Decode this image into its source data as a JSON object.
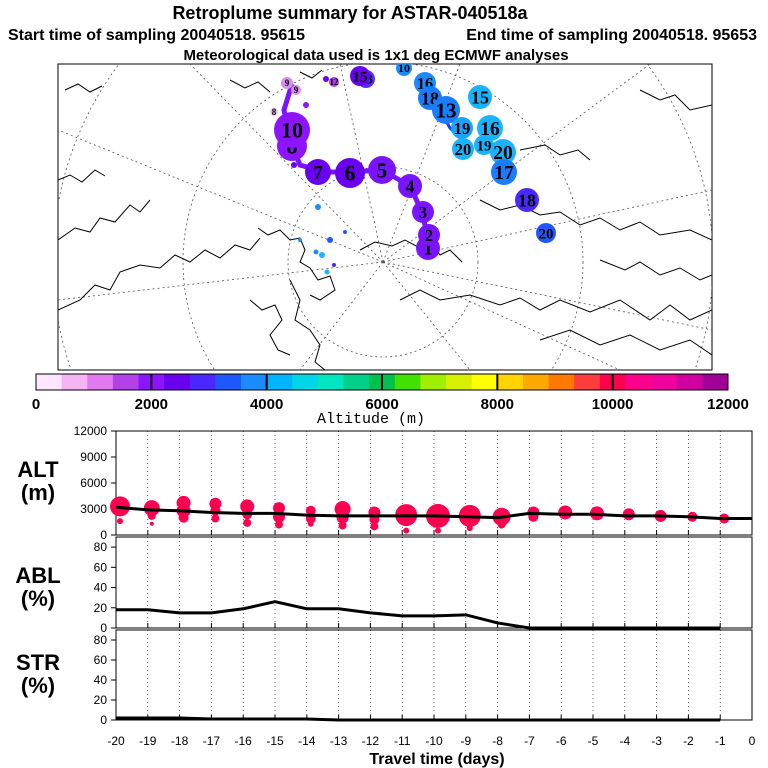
{
  "header": {
    "title": "Retroplume summary for ASTAR-040518a",
    "start_time": "Start time of sampling 20040518. 95615",
    "end_time": "End time of sampling 20040518. 95653",
    "met_note": "Meteorological data used is 1x1 deg ECMWF analyses"
  },
  "colorbar": {
    "label": "Altitude (m)",
    "ticks": [
      "0",
      "2000",
      "4000",
      "6000",
      "8000",
      "10000",
      "12000"
    ],
    "colors": [
      "#ffe6ff",
      "#f5b5f5",
      "#e07aee",
      "#b340e8",
      "#8c14ff",
      "#6a00f0",
      "#4a28ff",
      "#2058ff",
      "#1a8cff",
      "#00b4ff",
      "#00d6e6",
      "#00e6c0",
      "#00d08a",
      "#00c050",
      "#40e000",
      "#a0ee00",
      "#d6f000",
      "#ffff00",
      "#ffd200",
      "#ffa800",
      "#ff7800",
      "#ff3c3c",
      "#ff0050",
      "#ff008c",
      "#f0009c",
      "#d000a0",
      "#a00096"
    ]
  },
  "map": {
    "trajectory_labels": [
      {
        "text": "1",
        "color": "#7a14ff"
      },
      {
        "text": "2",
        "color": "#7a14ff"
      },
      {
        "text": "3",
        "color": "#7a14ff"
      },
      {
        "text": "4",
        "color": "#7a14ff"
      },
      {
        "text": "5",
        "color": "#7a14ff"
      },
      {
        "text": "6",
        "color": "#6a00f0"
      },
      {
        "text": "7",
        "color": "#6a00f0"
      },
      {
        "text": "8",
        "color": "#8c14ff"
      },
      {
        "text": "9",
        "color": "#d890f0"
      },
      {
        "text": "9",
        "color": "#d890f0"
      },
      {
        "text": "8",
        "color": "#f0c0f8"
      },
      {
        "text": "10",
        "color": "#8c14ff"
      },
      {
        "text": "12",
        "color": "#b340e8"
      },
      {
        "text": "13",
        "color": "#5a2cff"
      },
      {
        "text": "15",
        "color": "#6a00f0"
      },
      {
        "text": "10",
        "color": "#1a8cff"
      },
      {
        "text": "16",
        "color": "#1a8cff"
      },
      {
        "text": "18",
        "color": "#1a7cff"
      },
      {
        "text": "13",
        "color": "#1a7cff"
      },
      {
        "text": "15",
        "color": "#19b4ff"
      },
      {
        "text": "19",
        "color": "#19a4ff"
      },
      {
        "text": "16",
        "color": "#19b4ff"
      },
      {
        "text": "20",
        "color": "#19b4ff"
      },
      {
        "text": "19",
        "color": "#19b4ff"
      },
      {
        "text": "20",
        "color": "#19b4ff"
      },
      {
        "text": "17",
        "color": "#1a7cff"
      },
      {
        "text": "18",
        "color": "#4a28ff"
      },
      {
        "text": "20",
        "color": "#2058ff"
      }
    ]
  },
  "chart_data": [
    {
      "type": "line",
      "title": "ALT",
      "ylabel": "(m)",
      "xlabel": "Travel time (days)",
      "xlim": [
        -20,
        0
      ],
      "ylim": [
        0,
        12000
      ],
      "yticks": [
        "12000",
        "9000",
        "6000",
        "3000",
        "0"
      ],
      "x": [
        -20,
        -19,
        -18,
        -17,
        -16,
        -15,
        -14,
        -13,
        -12,
        -11,
        -10,
        -9,
        -8,
        -7,
        -6,
        -5,
        -4,
        -3,
        -2,
        -1,
        0
      ],
      "series": [
        {
          "name": "mean altitude",
          "values": [
            3200,
            2900,
            2800,
            2600,
            2500,
            2500,
            2300,
            2200,
            2200,
            2200,
            2200,
            2100,
            2000,
            2500,
            2400,
            2400,
            2200,
            2200,
            2100,
            1900,
            1900
          ]
        }
      ],
      "points_color": "#ff0050",
      "points": [
        {
          "x": -20,
          "y": 3300,
          "s": 10
        },
        {
          "x": -20,
          "y": 1600,
          "s": 3
        },
        {
          "x": -19,
          "y": 3100,
          "s": 8
        },
        {
          "x": -19,
          "y": 2200,
          "s": 4
        },
        {
          "x": -19,
          "y": 1300,
          "s": 2
        },
        {
          "x": -18,
          "y": 3700,
          "s": 7
        },
        {
          "x": -18,
          "y": 2800,
          "s": 7
        },
        {
          "x": -18,
          "y": 2000,
          "s": 5
        },
        {
          "x": -17,
          "y": 3600,
          "s": 6
        },
        {
          "x": -17,
          "y": 2800,
          "s": 5
        },
        {
          "x": -17,
          "y": 1900,
          "s": 4
        },
        {
          "x": -16,
          "y": 3300,
          "s": 7
        },
        {
          "x": -16,
          "y": 2400,
          "s": 5
        },
        {
          "x": -16,
          "y": 1400,
          "s": 4
        },
        {
          "x": -15,
          "y": 3100,
          "s": 6
        },
        {
          "x": -15,
          "y": 2100,
          "s": 6
        },
        {
          "x": -15,
          "y": 1200,
          "s": 4
        },
        {
          "x": -14,
          "y": 2800,
          "s": 5
        },
        {
          "x": -14,
          "y": 1900,
          "s": 5
        },
        {
          "x": -14,
          "y": 1300,
          "s": 3
        },
        {
          "x": -13,
          "y": 3000,
          "s": 8
        },
        {
          "x": -13,
          "y": 2000,
          "s": 6
        },
        {
          "x": -13,
          "y": 1100,
          "s": 4
        },
        {
          "x": -12,
          "y": 2600,
          "s": 6
        },
        {
          "x": -12,
          "y": 1800,
          "s": 5
        },
        {
          "x": -12,
          "y": 1000,
          "s": 4
        },
        {
          "x": -11,
          "y": 2300,
          "s": 11
        },
        {
          "x": -11,
          "y": 500,
          "s": 3
        },
        {
          "x": -10,
          "y": 2200,
          "s": 12
        },
        {
          "x": -10,
          "y": 500,
          "s": 3
        },
        {
          "x": -9,
          "y": 2200,
          "s": 11
        },
        {
          "x": -9,
          "y": 800,
          "s": 3
        },
        {
          "x": -8,
          "y": 2100,
          "s": 9
        },
        {
          "x": -8,
          "y": 1200,
          "s": 4
        },
        {
          "x": -7,
          "y": 2600,
          "s": 6
        },
        {
          "x": -7,
          "y": 2100,
          "s": 5
        },
        {
          "x": -6,
          "y": 2600,
          "s": 7
        },
        {
          "x": -5,
          "y": 2500,
          "s": 7
        },
        {
          "x": -4,
          "y": 2400,
          "s": 6
        },
        {
          "x": -3,
          "y": 2200,
          "s": 6
        },
        {
          "x": -2,
          "y": 2100,
          "s": 5
        },
        {
          "x": -1,
          "y": 1900,
          "s": 5
        }
      ]
    },
    {
      "type": "line",
      "title": "ABL",
      "ylabel": "(%)",
      "xlim": [
        -20,
        0
      ],
      "ylim": [
        0,
        90
      ],
      "yticks": [
        "80",
        "60",
        "40",
        "20",
        "0"
      ],
      "x": [
        -20,
        -19,
        -18,
        -17,
        -16,
        -15,
        -14,
        -13,
        -12,
        -11,
        -10,
        -9,
        -8,
        -7,
        -6,
        -5,
        -4,
        -3,
        -2,
        -1
      ],
      "series": [
        {
          "name": "ABL fraction",
          "values": [
            18,
            18,
            15,
            15,
            19,
            26,
            19,
            19,
            15,
            12,
            12,
            13,
            5,
            0,
            0,
            0,
            0,
            0,
            0,
            0
          ]
        }
      ]
    },
    {
      "type": "line",
      "title": "STR",
      "ylabel": "(%)",
      "xlim": [
        -20,
        0
      ],
      "ylim": [
        0,
        90
      ],
      "yticks": [
        "80",
        "60",
        "40",
        "20",
        "0"
      ],
      "x": [
        -20,
        -19,
        -18,
        -17,
        -16,
        -15,
        -14,
        -13,
        -12,
        -11,
        -10,
        -9,
        -8,
        -7,
        -6,
        -5,
        -4,
        -3,
        -2,
        -1
      ],
      "series": [
        {
          "name": "stratospheric fraction",
          "values": [
            2,
            2,
            2,
            1,
            1,
            1,
            1,
            0,
            0,
            0,
            0,
            0,
            0,
            0,
            0,
            0,
            0,
            0,
            0,
            0
          ]
        }
      ]
    }
  ],
  "xaxis": {
    "ticks": [
      "-20",
      "-19",
      "-18",
      "-17",
      "-16",
      "-15",
      "-14",
      "-13",
      "-12",
      "-11",
      "-10",
      "-9",
      "-8",
      "-7",
      "-6",
      "-5",
      "-4",
      "-3",
      "-2",
      "-1",
      "0"
    ],
    "label": "Travel time (days)"
  }
}
